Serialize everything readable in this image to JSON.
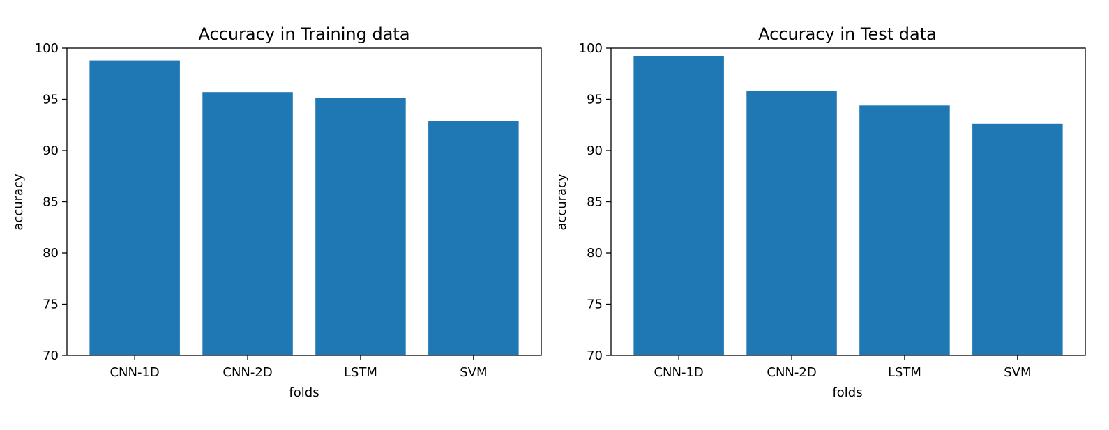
{
  "chart_data": [
    {
      "type": "bar",
      "title": "Accuracy in Training data",
      "xlabel": "folds",
      "ylabel": "accuracy",
      "categories": [
        "CNN-1D",
        "CNN-2D",
        "LSTM",
        "SVM"
      ],
      "values": [
        98.8,
        95.7,
        95.1,
        92.9
      ],
      "ylim": [
        70,
        100
      ],
      "yticks": [
        70,
        75,
        80,
        85,
        90,
        95,
        100
      ],
      "bar_color": "#1f77b4",
      "grid": false
    },
    {
      "type": "bar",
      "title": "Accuracy in Test data",
      "xlabel": "folds",
      "ylabel": "accuracy",
      "categories": [
        "CNN-1D",
        "CNN-2D",
        "LSTM",
        "SVM"
      ],
      "values": [
        99.2,
        95.8,
        94.4,
        92.6
      ],
      "ylim": [
        70,
        100
      ],
      "yticks": [
        70,
        75,
        80,
        85,
        90,
        95,
        100
      ],
      "bar_color": "#1f77b4",
      "grid": false
    }
  ]
}
